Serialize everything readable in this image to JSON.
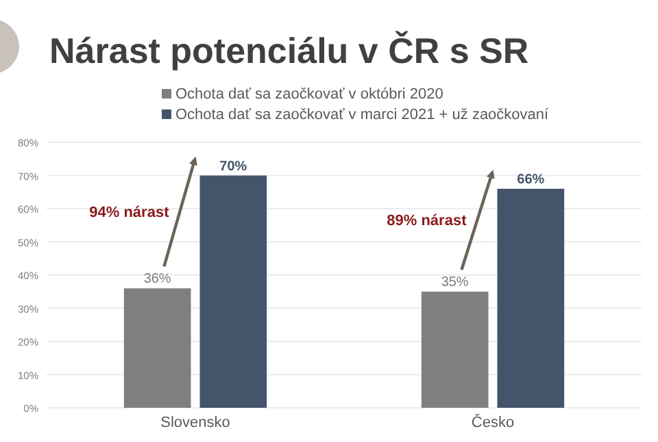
{
  "chart_data": {
    "type": "bar",
    "title": "Nárast potenciálu v ČR s SR",
    "categories": [
      "Slovensko",
      "Česko"
    ],
    "series": [
      {
        "name": "Ochota dať sa zaočkovať v októbri 2020",
        "color": "#7f7f7f",
        "values": [
          36,
          35
        ],
        "value_labels": [
          "36%",
          "35%"
        ]
      },
      {
        "name": "Ochota dať sa zaočkovať v marci 2021 + už zaočkovaní",
        "color": "#44546a",
        "values": [
          70,
          66
        ],
        "value_labels": [
          "70%",
          "66%"
        ]
      }
    ],
    "annotations": [
      "94% nárast",
      "89% nárast"
    ],
    "ylim": [
      0,
      80
    ],
    "yticks": [
      {
        "value": 0,
        "label": "0%"
      },
      {
        "value": 10,
        "label": "10%"
      },
      {
        "value": 20,
        "label": "20%"
      },
      {
        "value": 30,
        "label": "30%"
      },
      {
        "value": 40,
        "label": "40%"
      },
      {
        "value": 50,
        "label": "50%"
      },
      {
        "value": 60,
        "label": "60%"
      },
      {
        "value": 70,
        "label": "70%"
      },
      {
        "value": 80,
        "label": "80%"
      }
    ],
    "grid": "y",
    "legend": "top"
  }
}
